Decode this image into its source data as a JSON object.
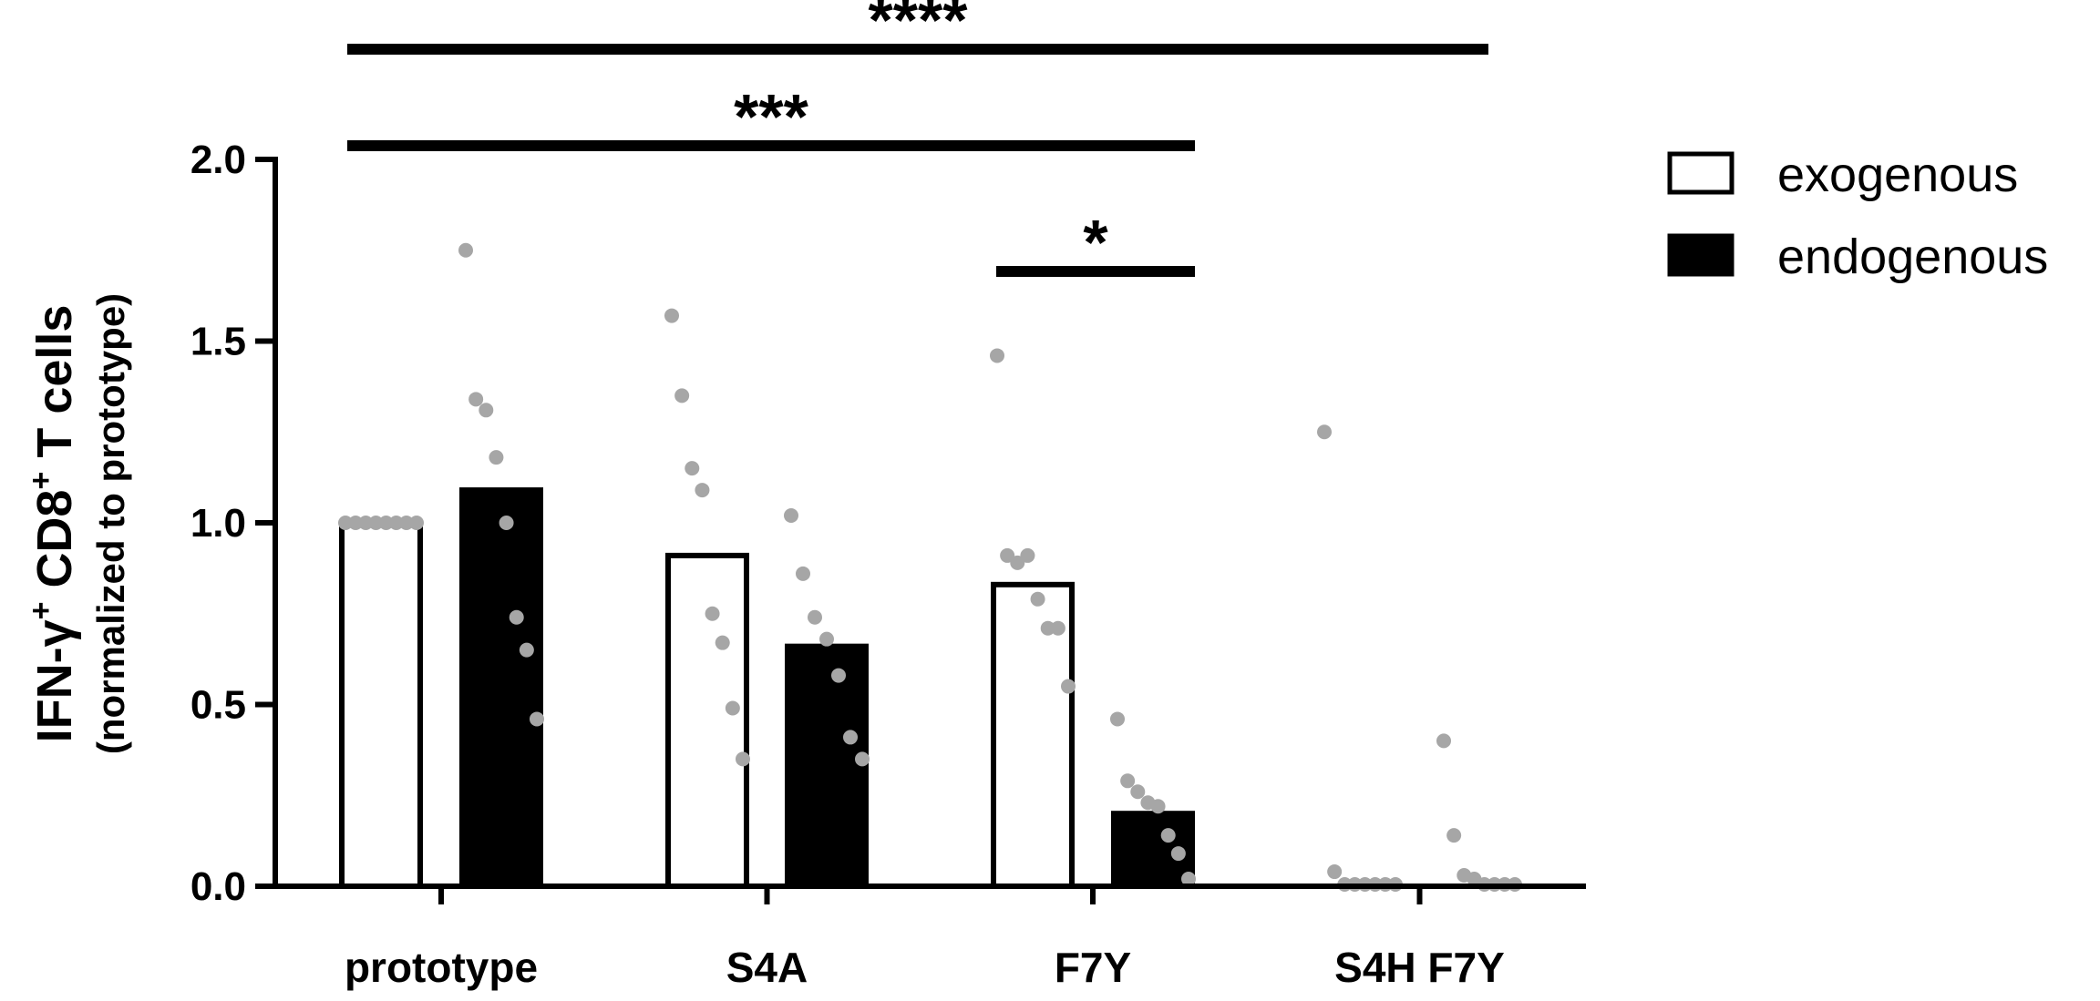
{
  "chart_data": {
    "type": "bar",
    "categories": [
      "prototype",
      "S4A",
      "F7Y",
      "S4H F7Y"
    ],
    "ylabel_main": "IFN-γ",
    "ylabel_sup1": "+",
    "ylabel_mid": " CD8",
    "ylabel_sup2": "+",
    "ylabel_end": " T cells",
    "ylabel_sub": "(normalized to prototype)",
    "ylim": [
      0,
      2.0
    ],
    "yticks": [
      "0.0",
      "0.5",
      "1.0",
      "1.5",
      "2.0"
    ],
    "legend_position": "top-right",
    "series": [
      {
        "name": "exogenous",
        "fill": "#ffffff",
        "values": [
          1.0,
          0.91,
          0.83,
          0.0
        ],
        "points": [
          [
            1.0,
            1.0,
            1.0,
            1.0,
            1.0,
            1.0,
            1.0,
            1.0
          ],
          [
            1.57,
            1.35,
            1.15,
            1.09,
            0.75,
            0.67,
            0.49,
            0.35
          ],
          [
            1.46,
            0.91,
            0.89,
            0.91,
            0.79,
            0.71,
            0.71,
            0.55
          ],
          [
            1.25,
            0.04,
            0.0,
            0.0,
            0.0,
            0.0,
            0.0,
            0.0
          ]
        ]
      },
      {
        "name": "endogenous",
        "fill": "#000000",
        "values": [
          1.09,
          0.66,
          0.2,
          0.0
        ],
        "points": [
          [
            1.75,
            1.34,
            1.31,
            1.18,
            1.0,
            0.74,
            0.65,
            0.46
          ],
          [
            1.02,
            0.86,
            0.74,
            0.68,
            0.58,
            0.41,
            0.35
          ],
          [
            0.46,
            0.29,
            0.26,
            0.23,
            0.22,
            0.14,
            0.09,
            0.02
          ],
          [
            0.4,
            0.14,
            0.03,
            0.02,
            0.0,
            0.0,
            0.0,
            0.0
          ]
        ]
      }
    ],
    "point_color": "#a6a6a6",
    "significance": [
      {
        "label": "*",
        "from": "F7Y exogenous",
        "to": "F7Y endogenous"
      },
      {
        "label": "***",
        "from": "prototype endogenous",
        "to": "F7Y endogenous"
      },
      {
        "label": "****",
        "from": "prototype endogenous",
        "to": "S4H F7Y endogenous"
      }
    ]
  }
}
